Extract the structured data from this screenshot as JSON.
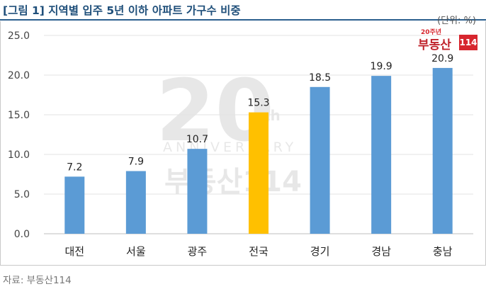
{
  "title": "[그림 1] 지역별 입주 5년 이하 아파트 가구수 비중",
  "unit_label": "(단위: %)",
  "source": "자료: 부동산114",
  "logo": {
    "anniversary": "20주년",
    "brand": "부동산",
    "number": "114"
  },
  "watermark": {
    "big": "20",
    "th": "th",
    "line": "ANNIVERSARY",
    "brand": "부동산114"
  },
  "colors": {
    "bar": "#5b9bd5",
    "highlight": "#ffc000",
    "title": "#1f4f7a",
    "brand_red": "#d7262e"
  },
  "chart_data": {
    "type": "bar",
    "categories": [
      "대전",
      "서울",
      "광주",
      "전국",
      "경기",
      "경남",
      "충남"
    ],
    "values": [
      7.2,
      7.9,
      10.7,
      15.3,
      18.5,
      19.9,
      20.9
    ],
    "value_labels": [
      "7.2",
      "7.9",
      "10.7",
      "15.3",
      "18.5",
      "19.9",
      "20.9"
    ],
    "highlight_category": "전국",
    "ylim": [
      0,
      25
    ],
    "yticks": [
      0,
      5,
      10,
      15,
      20,
      25
    ],
    "ytick_labels": [
      "0.0",
      "5.0",
      "10.0",
      "15.0",
      "20.0",
      "25.0"
    ],
    "grid": true,
    "xlabel": "",
    "ylabel": ""
  }
}
